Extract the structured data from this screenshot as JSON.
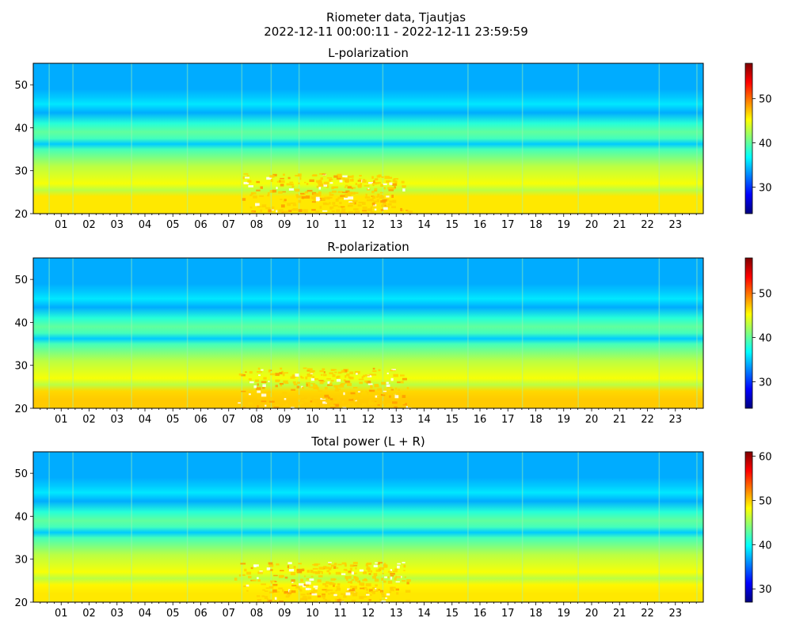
{
  "figure": {
    "title_line1": "Riometer data, Tjautjas",
    "title_line2": "2022-12-11 00:00:11 - 2022-12-11 23:59:59"
  },
  "colormap": {
    "name": "jet",
    "stops": [
      "#00007f",
      "#0000ff",
      "#007fff",
      "#00ffff",
      "#7fff7f",
      "#ffff00",
      "#ff7f00",
      "#ff0000",
      "#7f0000"
    ]
  },
  "chart_data": [
    {
      "type": "heatmap",
      "title": "L-polarization",
      "xlabel": "",
      "ylabel": "",
      "x_unit": "hour of day",
      "xlim": [
        0,
        24
      ],
      "x_ticks": [
        "01",
        "02",
        "03",
        "04",
        "05",
        "06",
        "07",
        "08",
        "09",
        "10",
        "11",
        "12",
        "13",
        "14",
        "15",
        "16",
        "17",
        "18",
        "19",
        "20",
        "21",
        "22",
        "23"
      ],
      "ylim": [
        20,
        55
      ],
      "y_ticks": [
        "20",
        "30",
        "40",
        "50"
      ],
      "colorbar": {
        "range": [
          24,
          58
        ],
        "ticks": [
          "30",
          "40",
          "50"
        ]
      },
      "frequency_profile": [
        [
          20,
          46
        ],
        [
          22,
          46
        ],
        [
          24,
          46
        ],
        [
          25.5,
          43
        ],
        [
          27,
          45
        ],
        [
          29,
          44
        ],
        [
          31,
          43
        ],
        [
          33,
          41
        ],
        [
          35,
          39
        ],
        [
          36.2,
          35
        ],
        [
          37.5,
          39
        ],
        [
          39,
          40
        ],
        [
          41,
          38
        ],
        [
          43.5,
          34
        ],
        [
          45.5,
          36
        ],
        [
          47,
          35
        ],
        [
          49,
          34
        ],
        [
          52,
          34
        ],
        [
          55,
          34
        ]
      ],
      "saturated_region": {
        "hours": [
          7.3,
          13.4
        ],
        "peak_hour": 10.8,
        "frequency": [
          20,
          29.5
        ]
      }
    },
    {
      "type": "heatmap",
      "title": "R-polarization",
      "xlabel": "",
      "ylabel": "",
      "x_unit": "hour of day",
      "xlim": [
        0,
        24
      ],
      "x_ticks": [
        "01",
        "02",
        "03",
        "04",
        "05",
        "06",
        "07",
        "08",
        "09",
        "10",
        "11",
        "12",
        "13",
        "14",
        "15",
        "16",
        "17",
        "18",
        "19",
        "20",
        "21",
        "22",
        "23"
      ],
      "ylim": [
        20,
        55
      ],
      "y_ticks": [
        "20",
        "30",
        "40",
        "50"
      ],
      "colorbar": {
        "range": [
          24,
          58
        ],
        "ticks": [
          "30",
          "40",
          "50"
        ]
      },
      "frequency_profile": [
        [
          20,
          47
        ],
        [
          22,
          47
        ],
        [
          24,
          46.5
        ],
        [
          25.5,
          43
        ],
        [
          27,
          45
        ],
        [
          29,
          44
        ],
        [
          31,
          43
        ],
        [
          33,
          41
        ],
        [
          35,
          39
        ],
        [
          36.2,
          35
        ],
        [
          37.5,
          39
        ],
        [
          39,
          40
        ],
        [
          41,
          38
        ],
        [
          43.5,
          34
        ],
        [
          45.5,
          36
        ],
        [
          47,
          35
        ],
        [
          49,
          34
        ],
        [
          52,
          34
        ],
        [
          55,
          34
        ]
      ],
      "saturated_region": {
        "hours": [
          7.2,
          13.4
        ],
        "peak_hour": 10.8,
        "frequency": [
          20,
          29.5
        ]
      }
    },
    {
      "type": "heatmap",
      "title": "Total power (L + R)",
      "xlabel": "",
      "ylabel": "",
      "x_unit": "hour of day",
      "xlim": [
        0,
        24
      ],
      "x_ticks": [
        "01",
        "02",
        "03",
        "04",
        "05",
        "06",
        "07",
        "08",
        "09",
        "10",
        "11",
        "12",
        "13",
        "14",
        "15",
        "16",
        "17",
        "18",
        "19",
        "20",
        "21",
        "22",
        "23"
      ],
      "ylim": [
        20,
        55
      ],
      "y_ticks": [
        "20",
        "30",
        "40",
        "50"
      ],
      "colorbar": {
        "range": [
          27,
          61
        ],
        "ticks": [
          "30",
          "40",
          "50",
          "60"
        ]
      },
      "frequency_profile": [
        [
          20,
          49
        ],
        [
          22,
          49
        ],
        [
          24,
          48.5
        ],
        [
          25.5,
          46
        ],
        [
          27,
          48
        ],
        [
          29,
          47
        ],
        [
          31,
          46
        ],
        [
          33,
          44
        ],
        [
          35,
          42
        ],
        [
          36.2,
          38
        ],
        [
          37.5,
          42
        ],
        [
          39,
          43
        ],
        [
          41,
          41
        ],
        [
          43.5,
          37
        ],
        [
          45.5,
          39
        ],
        [
          47,
          38
        ],
        [
          49,
          37
        ],
        [
          52,
          37
        ],
        [
          55,
          37
        ]
      ],
      "saturated_region": {
        "hours": [
          7.2,
          13.4
        ],
        "peak_hour": 10.8,
        "frequency": [
          20,
          29.5
        ]
      }
    }
  ]
}
